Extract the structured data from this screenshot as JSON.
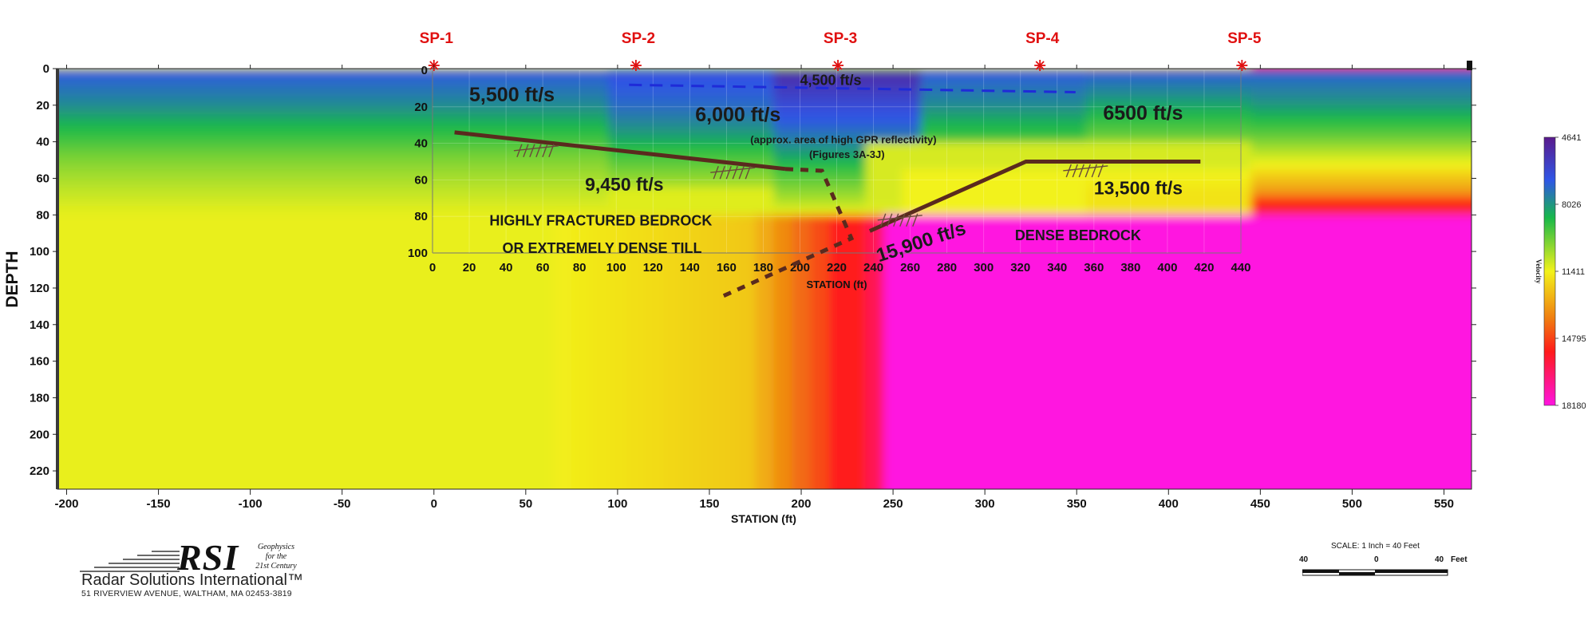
{
  "chart_data": {
    "type": "heatmap",
    "xlabel": "STATION (ft)",
    "ylabel": "DEPTH",
    "xlim": [
      -205,
      565
    ],
    "ylim": [
      230,
      0
    ],
    "x_ticks": [
      -200,
      -150,
      -100,
      -50,
      0,
      50,
      100,
      150,
      200,
      250,
      300,
      350,
      400,
      450,
      500,
      550
    ],
    "y_ticks": [
      0,
      20,
      40,
      60,
      80,
      100,
      120,
      140,
      160,
      180,
      200,
      220
    ],
    "inset_axes": {
      "xlabel": "STATION (ft)",
      "x_ticks": [
        0,
        20,
        40,
        60,
        80,
        100,
        120,
        140,
        160,
        180,
        200,
        220,
        240,
        260,
        280,
        300,
        320,
        340,
        360,
        380,
        400,
        420,
        440
      ],
      "y_ticks": [
        0,
        20,
        40,
        60,
        80,
        100
      ]
    },
    "colorbar": {
      "label": "Velocity",
      "ticks": [
        4641,
        8026,
        11411,
        14795,
        18180
      ],
      "colors": [
        "#5a1a8c",
        "#2f56e6",
        "#18b84a",
        "#f2f21a",
        "#f07a10",
        "#ff1a1a",
        "#ff14e0"
      ]
    },
    "shot_points": [
      {
        "label": "SP-1",
        "station": 0
      },
      {
        "label": "SP-2",
        "station": 110
      },
      {
        "label": "SP-3",
        "station": 220
      },
      {
        "label": "SP-4",
        "station": 330
      },
      {
        "label": "SP-5",
        "station": 440
      }
    ],
    "velocity_labels": [
      {
        "text": "4,500 ft/s",
        "station": 200,
        "depth": 8
      },
      {
        "text": "5,500 ft/s",
        "station": 20,
        "depth": 17
      },
      {
        "text": "6,000 ft/s",
        "station": 143,
        "depth": 28
      },
      {
        "text": "(approx. area of high GPR reflectivity)",
        "station": 173,
        "depth": 40
      },
      {
        "text": "(Figures 3A-3J)",
        "station": 205,
        "depth": 48
      },
      {
        "text": "6500 ft/s",
        "station": 365,
        "depth": 27
      },
      {
        "text": "9,450 ft/s",
        "station": 83,
        "depth": 66
      },
      {
        "text": "13,500 ft/s",
        "station": 360,
        "depth": 68
      },
      {
        "text": "HIGHLY FRACTURED BEDROCK",
        "station": 31,
        "depth": 85
      },
      {
        "text": "OR EXTREMELY DENSE TILL",
        "station": 38,
        "depth": 100
      },
      {
        "text": "15,900 ft/s",
        "station": 243,
        "depth": 105
      },
      {
        "text": "DENSE BEDROCK",
        "station": 317,
        "depth": 93
      }
    ],
    "interpreted_lines": {
      "left_refractor": [
        [
          12,
          34
        ],
        [
          192,
          54
        ]
      ],
      "right_refractor": [
        [
          238,
          88
        ],
        [
          323,
          50
        ],
        [
          418,
          50
        ]
      ],
      "fault_dashed": [
        [
          192,
          54
        ],
        [
          212,
          55
        ],
        [
          228,
          92
        ],
        [
          155,
          125
        ]
      ],
      "blue_dashed": [
        [
          107,
          8
        ],
        [
          350,
          12
        ]
      ]
    }
  },
  "logo": {
    "initials": "RSI",
    "tagline": [
      "Geophysics",
      "for the",
      "21st Century"
    ],
    "company": "Radar Solutions International™",
    "address": "51 RIVERVIEW AVENUE, WALTHAM, MA 02453-3819"
  },
  "scale": {
    "title": "SCALE: 1 Inch = 40 Feet",
    "labels": [
      "40",
      "0",
      "40",
      "Feet"
    ]
  }
}
